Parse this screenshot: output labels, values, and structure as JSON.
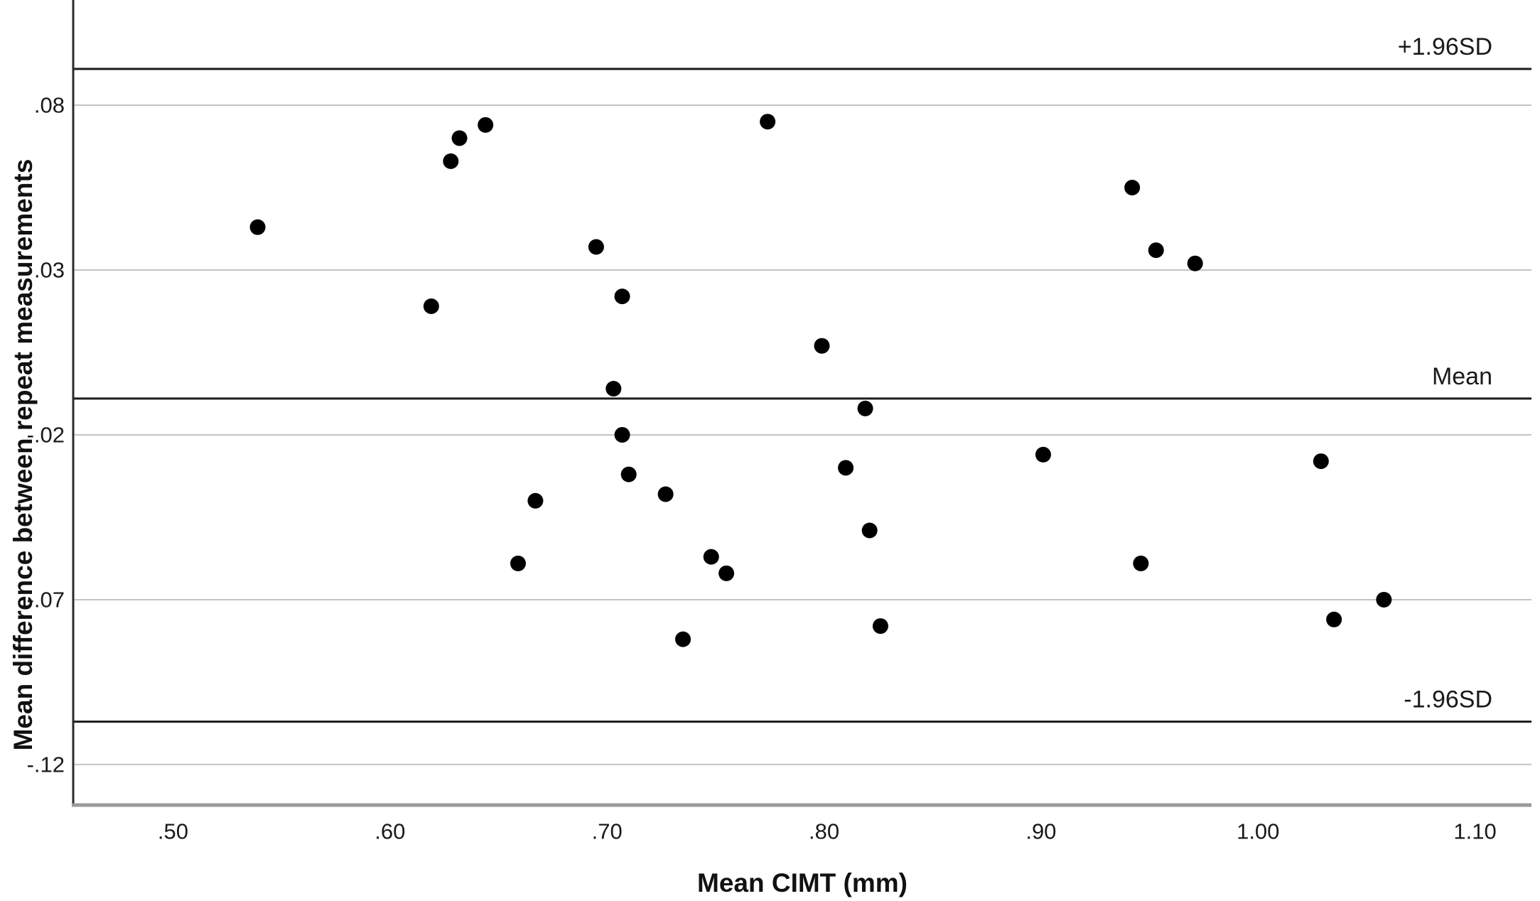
{
  "chart_data": {
    "type": "scatter",
    "title": "",
    "xlabel": "Mean CIMT (mm)",
    "ylabel": "Mean difference between repeat measurements",
    "xlim": [
      0.454,
      1.126
    ],
    "ylim": [
      -0.1323,
      0.1119
    ],
    "grid": true,
    "legend": "none",
    "x_ticks": {
      "labels": [
        ".50",
        ".60",
        ".70",
        ".80",
        ".90",
        "1.00",
        "1.10"
      ],
      "values": [
        0.5,
        0.6,
        0.7,
        0.8,
        0.9,
        1.0,
        1.1
      ]
    },
    "y_ticks": {
      "labels": [
        ".08",
        ".03",
        "-.02",
        "-.07",
        "-.12"
      ],
      "values": [
        0.08,
        0.03,
        -0.02,
        -0.07,
        -0.12
      ]
    },
    "reference_lines": [
      {
        "label": "+1.96SD",
        "value": 0.091
      },
      {
        "label": "Mean",
        "value": -0.009
      },
      {
        "label": "-1.96SD",
        "value": -0.107
      }
    ],
    "points": [
      [
        0.539,
        0.043
      ],
      [
        0.644,
        0.074
      ],
      [
        0.632,
        0.07
      ],
      [
        0.628,
        0.063
      ],
      [
        0.619,
        0.019
      ],
      [
        0.774,
        0.075
      ],
      [
        0.695,
        0.037
      ],
      [
        0.707,
        0.022
      ],
      [
        0.799,
        0.007
      ],
      [
        0.703,
        -0.006
      ],
      [
        0.819,
        -0.012
      ],
      [
        0.707,
        -0.02
      ],
      [
        0.71,
        -0.032
      ],
      [
        0.727,
        -0.038
      ],
      [
        0.667,
        -0.04
      ],
      [
        0.81,
        -0.03
      ],
      [
        0.821,
        -0.049
      ],
      [
        0.748,
        -0.057
      ],
      [
        0.755,
        -0.062
      ],
      [
        0.826,
        -0.078
      ],
      [
        0.735,
        -0.082
      ],
      [
        0.659,
        -0.059
      ],
      [
        0.942,
        0.055
      ],
      [
        0.953,
        0.036
      ],
      [
        0.971,
        0.032
      ],
      [
        0.901,
        -0.026
      ],
      [
        1.029,
        -0.028
      ],
      [
        0.946,
        -0.059
      ],
      [
        1.058,
        -0.07
      ],
      [
        1.035,
        -0.076
      ]
    ],
    "point_radius_px": 11,
    "colors": {
      "point": "#000000",
      "gridline": "#c4c4c4",
      "reference_line": "#1c1c1c",
      "y_axis_line": "#2b2b2b",
      "x_axis_line": "#9a9a9a",
      "text": "#1a1a1a"
    }
  }
}
